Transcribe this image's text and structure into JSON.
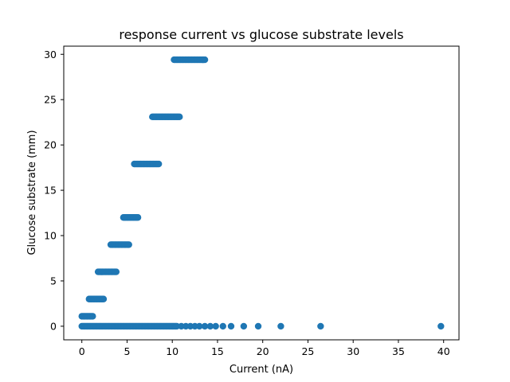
{
  "chart_data": {
    "type": "scatter",
    "title": "response current vs glucose substrate levels",
    "xlabel": "Current (nA)",
    "ylabel": "Glucose substrate (mm)",
    "xlim": [
      -2.0,
      41.7
    ],
    "ylim": [
      -1.5,
      30.9
    ],
    "xticks": [
      0,
      5,
      10,
      15,
      20,
      25,
      30,
      35,
      40
    ],
    "yticks": [
      0,
      5,
      10,
      15,
      20,
      25,
      30
    ],
    "grid": false,
    "marker_color": "#1f77b4",
    "series": [
      {
        "levels": [
          {
            "y": 29.4,
            "x_range": [
              10.2,
              13.6
            ]
          },
          {
            "y": 23.1,
            "x_range": [
              7.8,
              10.8
            ]
          },
          {
            "y": 17.9,
            "x_range": [
              5.8,
              8.5
            ]
          },
          {
            "y": 12.0,
            "x_range": [
              4.6,
              6.2
            ]
          },
          {
            "y": 9.0,
            "x_range": [
              3.2,
              5.2
            ]
          },
          {
            "y": 6.0,
            "x_range": [
              1.8,
              3.8
            ]
          },
          {
            "y": 3.0,
            "x_range": [
              0.8,
              2.4
            ]
          },
          {
            "y": 1.1,
            "x_range": [
              0.0,
              1.2
            ]
          },
          {
            "y": 0.0,
            "x_range": [
              0.0,
              10.5
            ]
          }
        ],
        "extra_points": [
          [
            11.0,
            0
          ],
          [
            11.5,
            0
          ],
          [
            12.0,
            0
          ],
          [
            12.5,
            0
          ],
          [
            13.0,
            0
          ],
          [
            13.6,
            0
          ],
          [
            14.2,
            0
          ],
          [
            14.8,
            0
          ],
          [
            15.6,
            0
          ],
          [
            16.5,
            0
          ],
          [
            17.9,
            0
          ],
          [
            19.5,
            0
          ],
          [
            22.0,
            0
          ],
          [
            26.4,
            0
          ],
          [
            39.7,
            0
          ]
        ]
      }
    ]
  }
}
